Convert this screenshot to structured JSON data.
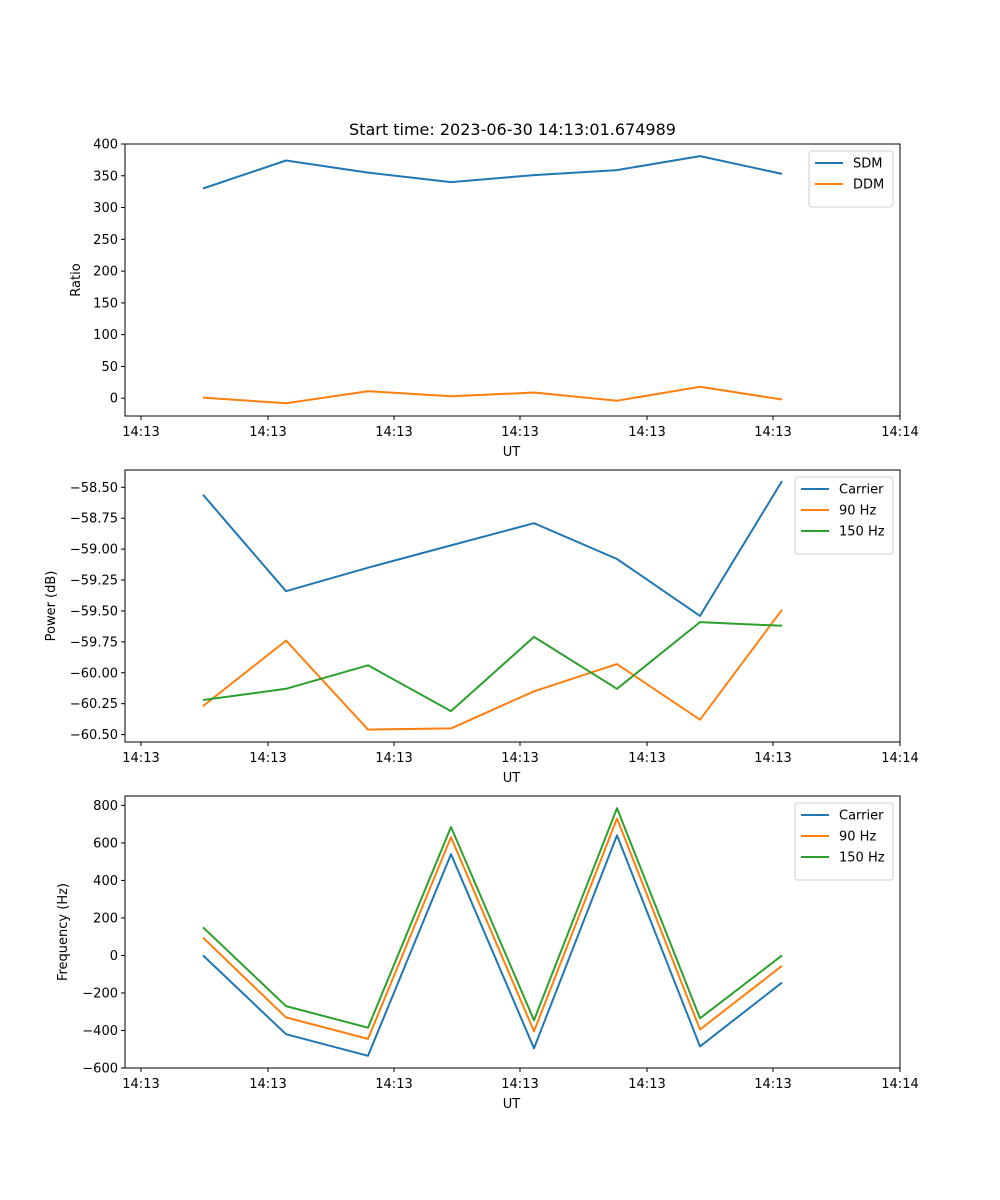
{
  "figure_title": "Start time: 2023-06-30 14:13:01.674989",
  "chart_data": [
    {
      "type": "line",
      "title": "Start time: 2023-06-30 14:13:01.674989",
      "xlabel": "UT",
      "ylabel": "Ratio",
      "x_tick_labels": [
        "14:13",
        "14:13",
        "14:13",
        "14:13",
        "14:13",
        "14:13",
        "14:14"
      ],
      "y_ticks": [
        0,
        50,
        100,
        150,
        200,
        250,
        300,
        350,
        400
      ],
      "y_tick_labels": [
        "0",
        "50",
        "100",
        "150",
        "200",
        "250",
        "300",
        "350",
        "400"
      ],
      "ylim": [
        -28,
        400
      ],
      "legend_position": "top-right",
      "series": [
        {
          "name": "SDM",
          "color": "#1f77b4",
          "values": [
            330,
            374,
            355,
            340,
            351,
            359,
            381,
            353
          ]
        },
        {
          "name": "DDM",
          "color": "#ff7f0e",
          "values": [
            1,
            -8,
            11,
            3,
            9,
            -4,
            18,
            -2
          ]
        }
      ]
    },
    {
      "type": "line",
      "title": "",
      "xlabel": "UT",
      "ylabel": "Power (dB)",
      "x_tick_labels": [
        "14:13",
        "14:13",
        "14:13",
        "14:13",
        "14:13",
        "14:13",
        "14:14"
      ],
      "y_ticks": [
        -60.5,
        -60.25,
        -60.0,
        -59.75,
        -59.5,
        -59.25,
        -59.0,
        -58.75,
        -58.5
      ],
      "y_tick_labels": [
        "−60.50",
        "−60.25",
        "−60.00",
        "−59.75",
        "−59.50",
        "−59.25",
        "−59.00",
        "−58.75",
        "−58.50"
      ],
      "ylim": [
        -60.56,
        -58.36
      ],
      "legend_position": "top-right",
      "series": [
        {
          "name": "Carrier",
          "color": "#1f77b4",
          "values": [
            -58.56,
            -59.34,
            -59.15,
            -58.97,
            -58.79,
            -59.08,
            -59.54,
            -58.45
          ]
        },
        {
          "name": "90 Hz",
          "color": "#ff7f0e",
          "values": [
            -60.27,
            -59.74,
            -60.46,
            -60.45,
            -60.15,
            -59.93,
            -60.38,
            -59.49
          ]
        },
        {
          "name": "150 Hz",
          "color": "#2ca02c",
          "values": [
            -60.22,
            -60.13,
            -59.94,
            -60.31,
            -59.71,
            -60.13,
            -59.59,
            -59.62
          ]
        }
      ]
    },
    {
      "type": "line",
      "title": "",
      "xlabel": "UT",
      "ylabel": "Frequency (Hz)",
      "x_tick_labels": [
        "14:13",
        "14:13",
        "14:13",
        "14:13",
        "14:13",
        "14:13",
        "14:14"
      ],
      "y_ticks": [
        -600,
        -400,
        -200,
        0,
        200,
        400,
        600,
        800
      ],
      "y_tick_labels": [
        "−600",
        "−400",
        "−200",
        "0",
        "200",
        "400",
        "600",
        "800"
      ],
      "ylim": [
        -600,
        850
      ],
      "legend_position": "top-right",
      "series": [
        {
          "name": "Carrier",
          "color": "#1f77b4",
          "values": [
            0,
            -420,
            -535,
            540,
            -495,
            640,
            -485,
            -145
          ]
        },
        {
          "name": "90 Hz",
          "color": "#ff7f0e",
          "values": [
            95,
            -330,
            -445,
            630,
            -405,
            730,
            -395,
            -55
          ]
        },
        {
          "name": "150 Hz",
          "color": "#2ca02c",
          "values": [
            150,
            -270,
            -385,
            685,
            -345,
            785,
            -335,
            0
          ]
        }
      ]
    }
  ]
}
